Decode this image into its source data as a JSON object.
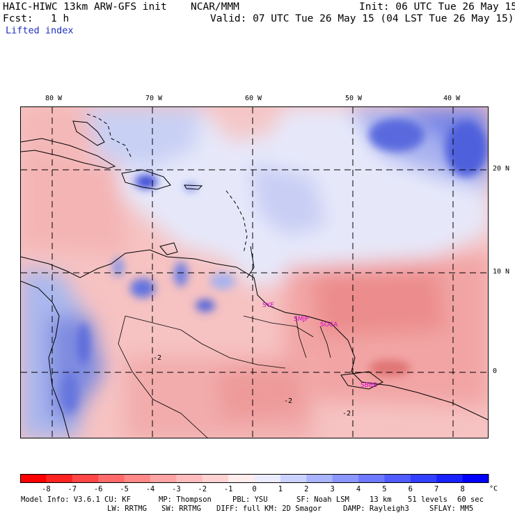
{
  "header": {
    "model": "HAIC-HIWC 13km ARW-GFS init",
    "org": "NCAR/MMM",
    "init": "Init: 06 UTC Tue 26 May 15",
    "fcst_label": "Fcst:",
    "fcst_value": "1 h",
    "valid": "Valid: 07 UTC Tue 26 May 15 (04 LST Tue 26 May 15)",
    "field": "Lifted index"
  },
  "map": {
    "lon_labels": [
      "80 W",
      "70 W",
      "60 W",
      "50 W",
      "40 W"
    ],
    "lat_labels": [
      "20 N",
      "10 N",
      "0"
    ],
    "stations": [
      "SYE",
      "SMJP",
      "SOCA",
      "SBBE"
    ],
    "contour_labels": [
      "-2",
      "-2",
      "-2"
    ],
    "colors": {
      "negative": "#f4a0a0",
      "negative_strong": "#e87070",
      "positive": "#b8c4f4",
      "positive_strong": "#5060e0",
      "station": "#d400d4",
      "grid": "#000000"
    }
  },
  "colorbar": {
    "labels": [
      "-8",
      "-7",
      "-6",
      "-5",
      "-4",
      "-3",
      "-2",
      "-1",
      "0",
      "1",
      "2",
      "3",
      "4",
      "5",
      "6",
      "7",
      "8"
    ],
    "unit": "°C",
    "colors": [
      "#ff0000",
      "#ff2222",
      "#ff4747",
      "#ff6b6b",
      "#ff8888",
      "#ffa4a4",
      "#ffbcbc",
      "#ffd2d2",
      "#ffecec",
      "#ececff",
      "#ccd2ff",
      "#aab4ff",
      "#8c96ff",
      "#6e7aff",
      "#505cff",
      "#3440ff",
      "#1822ff",
      "#0000ff"
    ]
  },
  "footer": {
    "line1": [
      "Model Info: V3.6.1",
      "CU: KF",
      "MP: Thompson",
      "PBL: YSU",
      "SF: Noah LSM",
      "13 km",
      "51 levels",
      "60 sec"
    ],
    "line2": [
      "LW: RRTMG",
      "SW: RRTMG",
      "DIFF: full",
      "KM: 2D Smagor",
      "DAMP: Rayleigh3",
      "SFLAY: MM5"
    ]
  }
}
